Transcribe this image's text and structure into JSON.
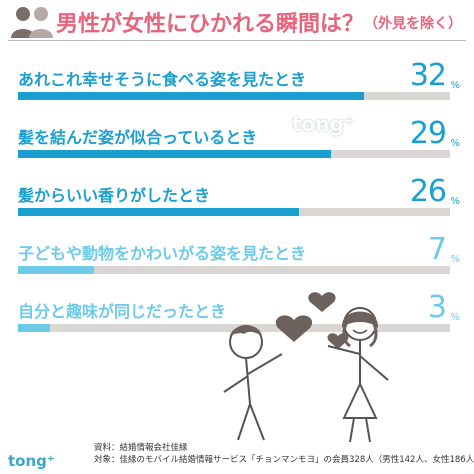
{
  "header": {
    "title": "男性が女性にひかれる瞬間は？",
    "subtitle": "（外見を除く）",
    "icon": "people-icon",
    "accent": "#e8647c"
  },
  "chart_data": {
    "type": "bar",
    "title": "男性が女性にひかれる瞬間は？（外見を除く）",
    "unit": "%",
    "xlim": [
      0,
      40
    ],
    "categories": [
      "あれこれ幸せそうに食べる姿を見たとき",
      "髪を結んだ姿が似合っているとき",
      "髪からいい香りがしたとき",
      "子どもや動物をかわいがる姿を見たとき",
      "自分と趣味が同じだったとき"
    ],
    "values": [
      32,
      29,
      26,
      7,
      3
    ],
    "value_labels": [
      "32",
      "29",
      "26",
      "7",
      "3"
    ],
    "colors": [
      "#1a9fd0",
      "#1a9fd0",
      "#1a9fd0",
      "#6dcbe8",
      "#6dcbe8"
    ]
  },
  "watermark": "tong⁺",
  "logo": "tong⁺",
  "footer": {
    "source": "資料：結婚情報会社佳縁",
    "target": "対象：佳縁のモバイル結婚情報サービス「チョンマンモヨ」の会員328人（男性142人、女性186人）"
  }
}
